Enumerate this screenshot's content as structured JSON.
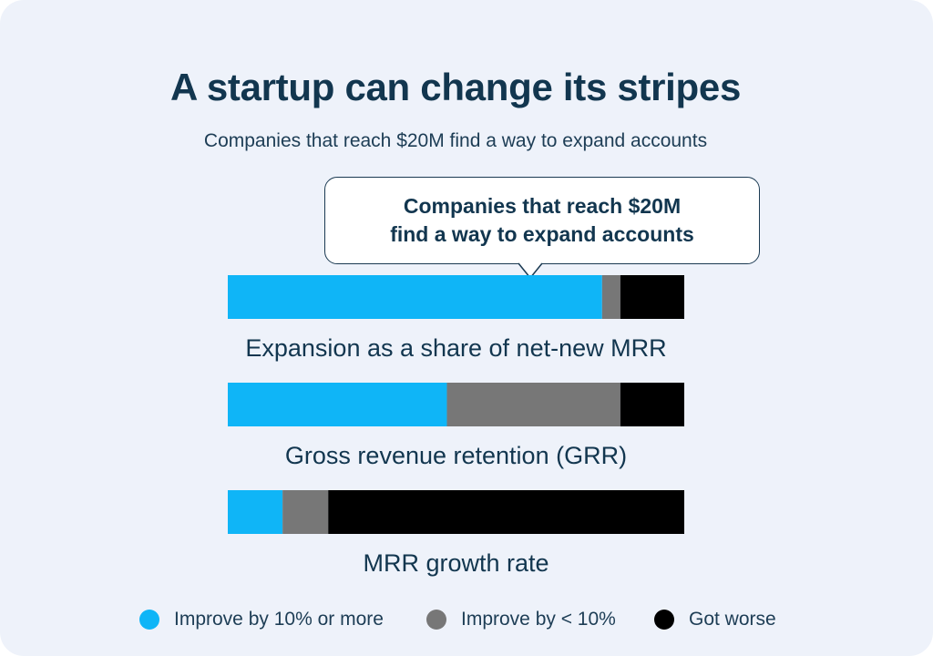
{
  "title": "A startup can change its stripes",
  "subtitle": "Companies that reach $20M find a way to expand accounts",
  "callout": {
    "line1": "Companies that reach $20M",
    "line2": "find a way to expand accounts"
  },
  "colors": {
    "improve_10_plus": "#0fb5f7",
    "improve_lt_10": "#777777",
    "got_worse": "#000000",
    "background": "#eef2fa",
    "text": "#12364f"
  },
  "chart_data": {
    "type": "bar",
    "stacked": true,
    "orientation": "horizontal",
    "normalized_to": 100,
    "categories": [
      "Expansion as a share of net-new MRR",
      "Gross revenue retention (GRR)",
      "MRR growth rate"
    ],
    "series": [
      {
        "name": "Improve by 10% or more",
        "color": "#0fb5f7",
        "values": [
          82,
          48,
          12
        ]
      },
      {
        "name": "Improve by < 10%",
        "color": "#777777",
        "values": [
          4,
          38,
          10
        ]
      },
      {
        "name": "Got worse",
        "color": "#000000",
        "values": [
          14,
          14,
          78
        ]
      }
    ],
    "legend_position": "bottom",
    "grid": false,
    "axes_visible": false
  }
}
